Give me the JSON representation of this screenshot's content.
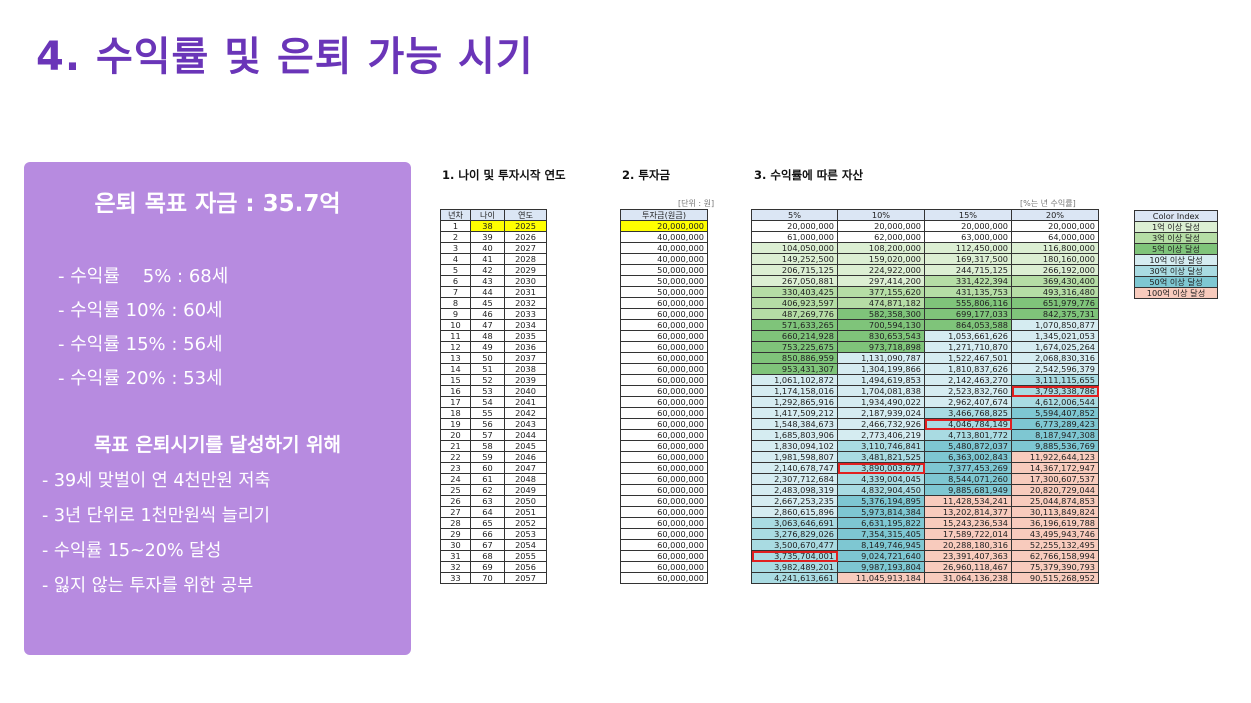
{
  "title": "4. 수익률 및 은퇴 가능 시기",
  "card": {
    "goal": "은퇴 목표 자금 : 35.7억",
    "rates": [
      "- 수익률    5% : 68세",
      "- 수익률 10% : 60세",
      "- 수익률 15% : 56세",
      "- 수익률 20% : 53세"
    ],
    "subtitle": "목표 은퇴시기를 달성하기 위해",
    "plans": [
      "- 39세 맞벌이 연 4천만원 저축",
      "- 3년 단위로 1천만원씩 늘리기",
      "- 수익률 15~20% 달성",
      "- 잃지 않는 투자를 위한 공부"
    ]
  },
  "section1": {
    "title": "1. 나이 및 투자시작 연도",
    "headers": [
      "년차",
      "나이",
      "연도"
    ]
  },
  "section2": {
    "title": "2. 투자금",
    "unit_note": "[단위 : 원]",
    "header": "투자금(원금)"
  },
  "section3": {
    "title": "3. 수익률에 따른 자산",
    "unit_note": "[%는 년 수익률]",
    "headers": [
      "5%",
      "10%",
      "15%",
      "20%"
    ]
  },
  "legend": {
    "header": "Color Index",
    "items": [
      {
        "label": "1억 이상 달성",
        "color": "#dcefd3"
      },
      {
        "label": "3억 이상 달성",
        "color": "#b5dda5"
      },
      {
        "label": "5억 이상 달성",
        "color": "#7fc47a"
      },
      {
        "label": "10억 이상 달성",
        "color": "#d5ecf1"
      },
      {
        "label": "30억 이상 달성",
        "color": "#a9dbe2"
      },
      {
        "label": "50억 이상 달성",
        "color": "#7ec7d2"
      },
      {
        "label": "100억 이상 달성",
        "color": "#f8cbbd"
      }
    ]
  },
  "rows": [
    {
      "n": "1",
      "age": "38",
      "year": "2025",
      "inv": "20,000,000",
      "v": [
        "20,000,000",
        "20,000,000",
        "20,000,000",
        "20,000,000"
      ]
    },
    {
      "n": "2",
      "age": "39",
      "year": "2026",
      "inv": "40,000,000",
      "v": [
        "61,000,000",
        "62,000,000",
        "63,000,000",
        "64,000,000"
      ]
    },
    {
      "n": "3",
      "age": "40",
      "year": "2027",
      "inv": "40,000,000",
      "v": [
        "104,050,000",
        "108,200,000",
        "112,450,000",
        "116,800,000"
      ]
    },
    {
      "n": "4",
      "age": "41",
      "year": "2028",
      "inv": "40,000,000",
      "v": [
        "149,252,500",
        "159,020,000",
        "169,317,500",
        "180,160,000"
      ]
    },
    {
      "n": "5",
      "age": "42",
      "year": "2029",
      "inv": "50,000,000",
      "v": [
        "206,715,125",
        "224,922,000",
        "244,715,125",
        "266,192,000"
      ]
    },
    {
      "n": "6",
      "age": "43",
      "year": "2030",
      "inv": "50,000,000",
      "v": [
        "267,050,881",
        "297,414,200",
        "331,422,394",
        "369,430,400"
      ]
    },
    {
      "n": "7",
      "age": "44",
      "year": "2031",
      "inv": "50,000,000",
      "v": [
        "330,403,425",
        "377,155,620",
        "431,135,753",
        "493,316,480"
      ]
    },
    {
      "n": "8",
      "age": "45",
      "year": "2032",
      "inv": "60,000,000",
      "v": [
        "406,923,597",
        "474,871,182",
        "555,806,116",
        "651,979,776"
      ]
    },
    {
      "n": "9",
      "age": "46",
      "year": "2033",
      "inv": "60,000,000",
      "v": [
        "487,269,776",
        "582,358,300",
        "699,177,033",
        "842,375,731"
      ]
    },
    {
      "n": "10",
      "age": "47",
      "year": "2034",
      "inv": "60,000,000",
      "v": [
        "571,633,265",
        "700,594,130",
        "864,053,588",
        "1,070,850,877"
      ]
    },
    {
      "n": "11",
      "age": "48",
      "year": "2035",
      "inv": "60,000,000",
      "v": [
        "660,214,928",
        "830,653,543",
        "1,053,661,626",
        "1,345,021,053"
      ]
    },
    {
      "n": "12",
      "age": "49",
      "year": "2036",
      "inv": "60,000,000",
      "v": [
        "753,225,675",
        "973,718,898",
        "1,271,710,870",
        "1,674,025,264"
      ]
    },
    {
      "n": "13",
      "age": "50",
      "year": "2037",
      "inv": "60,000,000",
      "v": [
        "850,886,959",
        "1,131,090,787",
        "1,522,467,501",
        "2,068,830,316"
      ]
    },
    {
      "n": "14",
      "age": "51",
      "year": "2038",
      "inv": "60,000,000",
      "v": [
        "953,431,307",
        "1,304,199,866",
        "1,810,837,626",
        "2,542,596,379"
      ]
    },
    {
      "n": "15",
      "age": "52",
      "year": "2039",
      "inv": "60,000,000",
      "v": [
        "1,061,102,872",
        "1,494,619,853",
        "2,142,463,270",
        "3,111,115,655"
      ]
    },
    {
      "n": "16",
      "age": "53",
      "year": "2040",
      "inv": "60,000,000",
      "v": [
        "1,174,158,016",
        "1,704,081,838",
        "2,523,832,760",
        "3,793,338,786"
      ]
    },
    {
      "n": "17",
      "age": "54",
      "year": "2041",
      "inv": "60,000,000",
      "v": [
        "1,292,865,916",
        "1,934,490,022",
        "2,962,407,674",
        "4,612,006,544"
      ]
    },
    {
      "n": "18",
      "age": "55",
      "year": "2042",
      "inv": "60,000,000",
      "v": [
        "1,417,509,212",
        "2,187,939,024",
        "3,466,768,825",
        "5,594,407,852"
      ]
    },
    {
      "n": "19",
      "age": "56",
      "year": "2043",
      "inv": "60,000,000",
      "v": [
        "1,548,384,673",
        "2,466,732,926",
        "4,046,784,149",
        "6,773,289,423"
      ]
    },
    {
      "n": "20",
      "age": "57",
      "year": "2044",
      "inv": "60,000,000",
      "v": [
        "1,685,803,906",
        "2,773,406,219",
        "4,713,801,772",
        "8,187,947,308"
      ]
    },
    {
      "n": "21",
      "age": "58",
      "year": "2045",
      "inv": "60,000,000",
      "v": [
        "1,830,094,102",
        "3,110,746,841",
        "5,480,872,037",
        "9,885,536,769"
      ]
    },
    {
      "n": "22",
      "age": "59",
      "year": "2046",
      "inv": "60,000,000",
      "v": [
        "1,981,598,807",
        "3,481,821,525",
        "6,363,002,843",
        "11,922,644,123"
      ]
    },
    {
      "n": "23",
      "age": "60",
      "year": "2047",
      "inv": "60,000,000",
      "v": [
        "2,140,678,747",
        "3,890,003,677",
        "7,377,453,269",
        "14,367,172,947"
      ]
    },
    {
      "n": "24",
      "age": "61",
      "year": "2048",
      "inv": "60,000,000",
      "v": [
        "2,307,712,684",
        "4,339,004,045",
        "8,544,071,260",
        "17,300,607,537"
      ]
    },
    {
      "n": "25",
      "age": "62",
      "year": "2049",
      "inv": "60,000,000",
      "v": [
        "2,483,098,319",
        "4,832,904,450",
        "9,885,681,949",
        "20,820,729,044"
      ]
    },
    {
      "n": "26",
      "age": "63",
      "year": "2050",
      "inv": "60,000,000",
      "v": [
        "2,667,253,235",
        "5,376,194,895",
        "11,428,534,241",
        "25,044,874,853"
      ]
    },
    {
      "n": "27",
      "age": "64",
      "year": "2051",
      "inv": "60,000,000",
      "v": [
        "2,860,615,896",
        "5,973,814,384",
        "13,202,814,377",
        "30,113,849,824"
      ]
    },
    {
      "n": "28",
      "age": "65",
      "year": "2052",
      "inv": "60,000,000",
      "v": [
        "3,063,646,691",
        "6,631,195,822",
        "15,243,236,534",
        "36,196,619,788"
      ]
    },
    {
      "n": "29",
      "age": "66",
      "year": "2053",
      "inv": "60,000,000",
      "v": [
        "3,276,829,026",
        "7,354,315,405",
        "17,589,722,014",
        "43,495,943,746"
      ]
    },
    {
      "n": "30",
      "age": "67",
      "year": "2054",
      "inv": "60,000,000",
      "v": [
        "3,500,670,477",
        "8,149,746,945",
        "20,288,180,316",
        "52,255,132,495"
      ]
    },
    {
      "n": "31",
      "age": "68",
      "year": "2055",
      "inv": "60,000,000",
      "v": [
        "3,735,704,001",
        "9,024,721,640",
        "23,391,407,363",
        "62,766,158,994"
      ]
    },
    {
      "n": "32",
      "age": "69",
      "year": "2056",
      "inv": "60,000,000",
      "v": [
        "3,982,489,201",
        "9,987,193,804",
        "26,960,118,467",
        "75,379,390,793"
      ]
    },
    {
      "n": "33",
      "age": "70",
      "year": "2057",
      "inv": "60,000,000",
      "v": [
        "4,241,613,661",
        "11,045,913,184",
        "31,064,136,238",
        "90,515,268,952"
      ]
    }
  ],
  "highlights": [
    {
      "row": 31,
      "col": 0
    },
    {
      "row": 23,
      "col": 1
    },
    {
      "row": 19,
      "col": 2
    },
    {
      "row": 16,
      "col": 3
    }
  ]
}
